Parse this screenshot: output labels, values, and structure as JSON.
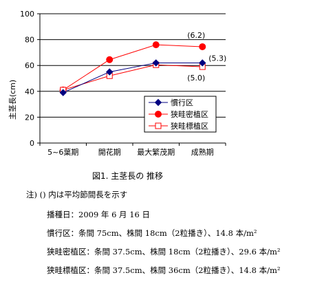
{
  "chart_data": {
    "type": "line",
    "title": "",
    "xlabel": "",
    "ylabel": "主茎長(cm)",
    "categories": [
      "5~6葉期",
      "開花期",
      "最大繁茂期",
      "成熟期"
    ],
    "ylim": [
      0,
      100
    ],
    "yticks": [
      0,
      20,
      40,
      60,
      80,
      100
    ],
    "grid": true,
    "legend_position": "bottom-right",
    "series": [
      {
        "name": "慣行区",
        "values": [
          39,
          55,
          62,
          62
        ],
        "color": "#000080",
        "marker": "diamond-filled"
      },
      {
        "name": "狭畦密植区",
        "values": [
          41,
          64.5,
          76,
          74.5
        ],
        "color": "#ff0000",
        "marker": "circle-filled"
      },
      {
        "name": "狭畦標植区",
        "values": [
          41,
          52,
          60.5,
          59
        ],
        "color": "#ff0000",
        "marker": "square-open"
      }
    ],
    "annotations": [
      {
        "text": "(6.2)",
        "series": 1,
        "index": 3
      },
      {
        "text": "(5.3)",
        "series": 0,
        "index": 3
      },
      {
        "text": "(5.0)",
        "series": 2,
        "index": 3
      }
    ]
  },
  "caption": "図1. 主茎長の 推移",
  "notes": {
    "line1": "注) () 内は平均節間長を示す",
    "line2": "播種日：2009 年 6 月 16 日",
    "line3": "慣行区：条間 75cm、株間 18cm（2粒播き）、14.8 本/m²",
    "line4": "狭畦密植区：条間 37.5cm、株間 18cm（2粒播き）、29.6 本/m²",
    "line5": "狭畦標植区：条間 37.5cm、株間 36cm（2粒播き）、14.8 本/m²"
  }
}
